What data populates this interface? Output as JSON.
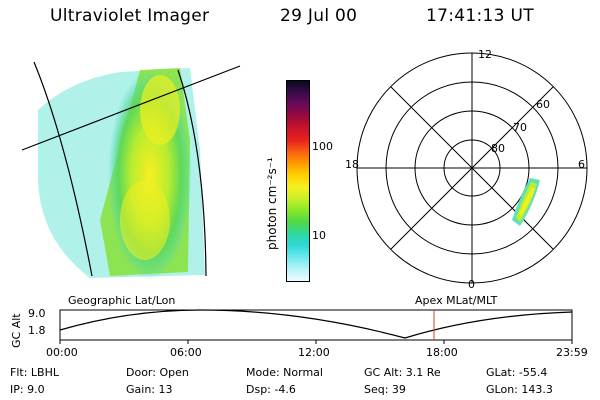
{
  "header": {
    "title": "Ultraviolet Imager",
    "date": "29 Jul 00",
    "time": "17:41:13 UT"
  },
  "colorbar": {
    "unit_label": "photon cm⁻²s⁻¹",
    "ticks": [
      "100",
      "10"
    ],
    "colors": [
      "#0a0a1e",
      "#3a0a4a",
      "#6a0a5a",
      "#9a0a3a",
      "#c8142a",
      "#e8201e",
      "#f86010",
      "#ff9a00",
      "#ffd000",
      "#f8f020",
      "#c8f028",
      "#88e828",
      "#50d848",
      "#30d8a0",
      "#30d8d8",
      "#70e8ec",
      "#b8f4f8",
      "#f0fcff"
    ]
  },
  "left_panel": {
    "label": "Geographic Lat/Lon"
  },
  "right_panel": {
    "label": "Apex MLat/MLT",
    "mlt_labels": {
      "top": "12",
      "left": "18",
      "right": "6",
      "bottom": "0"
    },
    "lat_labels": [
      "60",
      "70",
      "80"
    ]
  },
  "timeline": {
    "axis_label": "GC Alt",
    "y_ticks": [
      "9.0",
      "1.8"
    ],
    "x_ticks": [
      "00:00",
      "06:00",
      "12:00",
      "18:00",
      "23:59"
    ],
    "marker_color": "#c8442a"
  },
  "info": {
    "flt": "Flt: LBHL",
    "ip": "IP:  9.0",
    "door": "Door: Open",
    "gain": "Gain: 13",
    "mode": "Mode: Normal",
    "dsp": "Dsp:    -4.6",
    "gcalt": "GC Alt: 3.1 Re",
    "seq": "Seq: 39",
    "glat": "GLat:  -55.4",
    "glon": "GLon: 143.3"
  }
}
